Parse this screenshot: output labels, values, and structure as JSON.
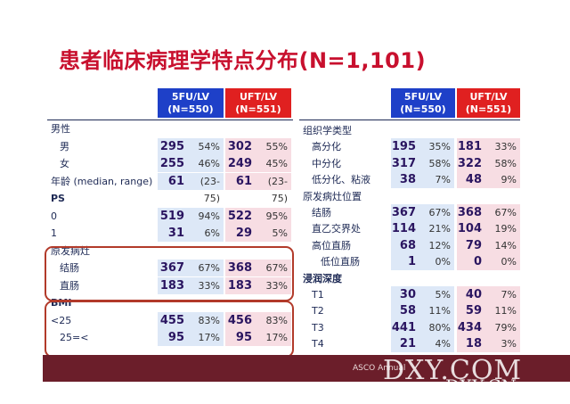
{
  "title": "患者临床病理学特点分布(N=1,101)",
  "left": {
    "headers": [
      {
        "name": "5FU/LV",
        "n": "(N=550)"
      },
      {
        "name": "UFT/LV",
        "n": "(N=551)"
      }
    ],
    "rows": [
      {
        "label": "男性",
        "indent": 0
      },
      {
        "label": "男",
        "indent": 1,
        "a": "295",
        "ap": "54%",
        "b": "302",
        "bp": "55%"
      },
      {
        "label": "女",
        "indent": 1,
        "a": "255",
        "ap": "46%",
        "b": "249",
        "bp": "45%"
      },
      {
        "label": "年龄 (median, range)",
        "indent": 0,
        "a": "61",
        "ap": "(23-75)",
        "b": "61",
        "bp": "(23-75)"
      },
      {
        "label": "PS",
        "indent": 0,
        "bold": true
      },
      {
        "label": "0",
        "indent": 0,
        "a": "519",
        "ap": "94%",
        "b": "522",
        "bp": "95%"
      },
      {
        "label": "1",
        "indent": 0,
        "a": "31",
        "ap": "6%",
        "b": "29",
        "bp": "5%"
      },
      {
        "label": "原发病灶",
        "indent": 0
      },
      {
        "label": "结肠",
        "indent": 1,
        "a": "367",
        "ap": "67%",
        "b": "368",
        "bp": "67%"
      },
      {
        "label": "直肠",
        "indent": 1,
        "a": "183",
        "ap": "33%",
        "b": "183",
        "bp": "33%"
      },
      {
        "label": "BMI",
        "indent": 0,
        "bold": true
      },
      {
        "label": "<25",
        "indent": 0,
        "a": "455",
        "ap": "83%",
        "b": "456",
        "bp": "83%"
      },
      {
        "label": "25=<",
        "indent": 1,
        "a": "95",
        "ap": "17%",
        "b": "95",
        "bp": "17%"
      }
    ]
  },
  "right": {
    "headers": [
      {
        "name": "5FU/LV",
        "n": "(N=550)"
      },
      {
        "name": "UFT/LV",
        "n": "(N=551)"
      }
    ],
    "rows": [
      {
        "label": "组织学类型",
        "indent": 0
      },
      {
        "label": "高分化",
        "indent": 1,
        "a": "195",
        "ap": "35%",
        "b": "181",
        "bp": "33%"
      },
      {
        "label": "中分化",
        "indent": 1,
        "a": "317",
        "ap": "58%",
        "b": "322",
        "bp": "58%"
      },
      {
        "label": "低分化、粘液",
        "indent": 1,
        "a": "38",
        "ap": "7%",
        "b": "48",
        "bp": "9%"
      },
      {
        "label": "原发病灶位置",
        "indent": 0
      },
      {
        "label": "结肠",
        "indent": 1,
        "a": "367",
        "ap": "67%",
        "b": "368",
        "bp": "67%"
      },
      {
        "label": "直乙交界处",
        "indent": 1,
        "a": "114",
        "ap": "21%",
        "b": "104",
        "bp": "19%"
      },
      {
        "label": "高位直肠",
        "indent": 1,
        "a": "68",
        "ap": "12%",
        "b": "79",
        "bp": "14%"
      },
      {
        "label": "低位直肠",
        "indent": 2,
        "a": "1",
        "ap": "0%",
        "b": "0",
        "bp": "0%"
      },
      {
        "label": "浸润深度",
        "indent": 0,
        "bold": true
      },
      {
        "label": "T1",
        "indent": 1,
        "a": "30",
        "ap": "5%",
        "b": "40",
        "bp": "7%"
      },
      {
        "label": "T2",
        "indent": 1,
        "a": "58",
        "ap": "11%",
        "b": "59",
        "bp": "11%"
      },
      {
        "label": "T3",
        "indent": 1,
        "a": "441",
        "ap": "80%",
        "b": "434",
        "bp": "79%"
      },
      {
        "label": "T4",
        "indent": 1,
        "a": "21",
        "ap": "4%",
        "b": "18",
        "bp": "3%"
      }
    ]
  },
  "watermark": {
    "main": "DXY.COM",
    "secondary": "DXY.CN"
  },
  "footer_text": "ASCO Annual",
  "colors": {
    "title": "#c8102e",
    "blue_header": "#1e40c8",
    "red_header": "#e02020",
    "footer": "#6b1e2a"
  }
}
